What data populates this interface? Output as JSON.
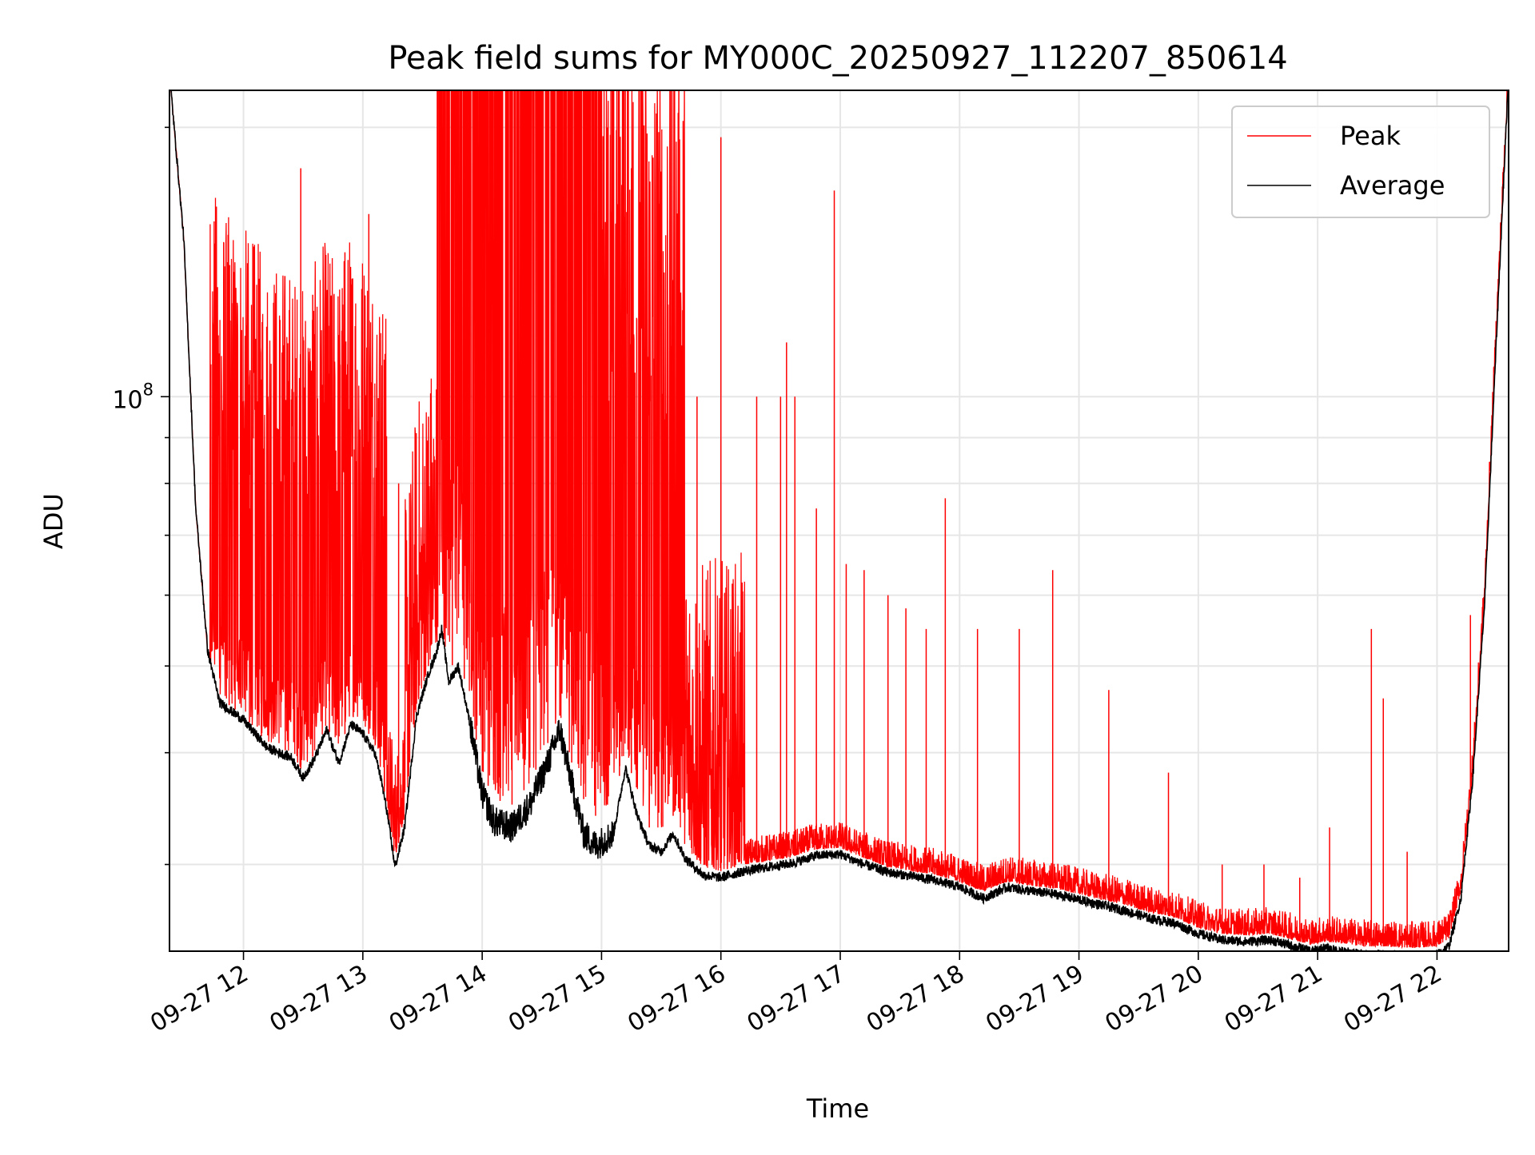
{
  "chart_data": {
    "type": "line",
    "title": "Peak field sums for MY000C_20250927_112207_850614",
    "xlabel": "Time",
    "ylabel": "ADU",
    "y_scale": "log",
    "ylim": [
      24000000,
      220000000
    ],
    "xlim_hours": [
      11.38,
      22.6
    ],
    "grid": true,
    "legend_position": "top-right",
    "x_ticks": [
      {
        "hour": 12,
        "label": "09-27 12"
      },
      {
        "hour": 13,
        "label": "09-27 13"
      },
      {
        "hour": 14,
        "label": "09-27 14"
      },
      {
        "hour": 15,
        "label": "09-27 15"
      },
      {
        "hour": 16,
        "label": "09-27 16"
      },
      {
        "hour": 17,
        "label": "09-27 17"
      },
      {
        "hour": 18,
        "label": "09-27 18"
      },
      {
        "hour": 19,
        "label": "09-27 19"
      },
      {
        "hour": 20,
        "label": "09-27 20"
      },
      {
        "hour": 21,
        "label": "09-27 21"
      },
      {
        "hour": 22,
        "label": "09-27 22"
      }
    ],
    "y_major_ticks": [
      {
        "value": 100000000,
        "label_base": "10",
        "label_exp": "8"
      }
    ],
    "y_minor_ticks": [
      30000000,
      40000000,
      50000000,
      60000000,
      70000000,
      80000000,
      90000000,
      200000000
    ],
    "series": [
      {
        "name": "Peak",
        "color": "#ff0000",
        "baseline": [
          [
            11.38,
            230000000
          ],
          [
            11.5,
            150000000
          ],
          [
            11.6,
            75000000
          ],
          [
            11.7,
            52000000
          ],
          [
            11.8,
            46000000
          ],
          [
            11.9,
            45000000
          ],
          [
            12.0,
            44000000
          ],
          [
            12.2,
            41000000
          ],
          [
            12.4,
            40000000
          ],
          [
            12.5,
            38000000
          ],
          [
            12.6,
            40000000
          ],
          [
            12.7,
            43000000
          ],
          [
            12.75,
            41000000
          ],
          [
            12.8,
            40000000
          ],
          [
            12.9,
            44000000
          ],
          [
            13.0,
            43000000
          ],
          [
            13.1,
            41000000
          ],
          [
            13.15,
            38000000
          ],
          [
            13.2,
            35000000
          ],
          [
            13.27,
            30500000
          ],
          [
            13.35,
            34000000
          ],
          [
            13.45,
            45000000
          ],
          [
            13.55,
            50000000
          ],
          [
            13.62,
            53000000
          ],
          [
            13.66,
            56000000
          ],
          [
            13.72,
            49000000
          ],
          [
            13.8,
            52000000
          ],
          [
            13.9,
            45000000
          ],
          [
            14.0,
            38000000
          ],
          [
            14.1,
            35500000
          ],
          [
            14.25,
            35000000
          ],
          [
            14.4,
            37000000
          ],
          [
            14.55,
            41000000
          ],
          [
            14.65,
            44000000
          ],
          [
            14.75,
            39000000
          ],
          [
            14.85,
            35500000
          ],
          [
            14.95,
            34000000
          ],
          [
            15.1,
            35500000
          ],
          [
            15.2,
            40000000
          ],
          [
            15.3,
            36000000
          ],
          [
            15.4,
            33000000
          ],
          [
            15.5,
            32500000
          ],
          [
            15.6,
            34000000
          ],
          [
            15.7,
            31500000
          ],
          [
            15.85,
            29800000
          ],
          [
            16.0,
            29500000
          ],
          [
            16.2,
            30000000
          ],
          [
            16.4,
            30300000
          ],
          [
            16.6,
            30600000
          ],
          [
            16.8,
            31200000
          ],
          [
            17.0,
            31300000
          ],
          [
            17.2,
            30500000
          ],
          [
            17.4,
            29800000
          ],
          [
            17.6,
            29500000
          ],
          [
            17.8,
            29200000
          ],
          [
            18.0,
            28700000
          ],
          [
            18.2,
            28000000
          ],
          [
            18.4,
            28700000
          ],
          [
            18.6,
            28400000
          ],
          [
            18.8,
            28200000
          ],
          [
            19.0,
            27800000
          ],
          [
            19.2,
            27400000
          ],
          [
            19.4,
            27000000
          ],
          [
            19.6,
            26500000
          ],
          [
            19.8,
            26200000
          ],
          [
            20.0,
            25500000
          ],
          [
            20.2,
            25100000
          ],
          [
            20.4,
            25000000
          ],
          [
            20.6,
            25100000
          ],
          [
            20.8,
            24700000
          ],
          [
            20.95,
            24400000
          ],
          [
            21.05,
            24600000
          ],
          [
            21.2,
            24500000
          ],
          [
            21.4,
            24300000
          ],
          [
            21.6,
            24300000
          ],
          [
            21.8,
            24200000
          ],
          [
            22.0,
            24300000
          ],
          [
            22.1,
            24800000
          ],
          [
            22.2,
            28000000
          ],
          [
            22.3,
            38000000
          ],
          [
            22.4,
            60000000
          ],
          [
            22.5,
            120000000
          ],
          [
            22.6,
            230000000
          ]
        ],
        "spikes": [
          [
            11.72,
            75000000
          ],
          [
            11.88,
            68000000
          ],
          [
            11.93,
            90000000
          ],
          [
            12.05,
            75000000
          ],
          [
            12.15,
            65000000
          ],
          [
            12.35,
            90000000
          ],
          [
            12.48,
            180000000
          ],
          [
            12.58,
            130000000
          ],
          [
            12.72,
            120000000
          ],
          [
            12.85,
            145000000
          ],
          [
            13.05,
            160000000
          ],
          [
            13.18,
            110000000
          ],
          [
            13.3,
            80000000
          ],
          [
            13.55,
            95000000
          ],
          [
            13.68,
            220000000
          ],
          [
            13.75,
            220000000
          ],
          [
            13.85,
            220000000
          ],
          [
            13.95,
            220000000
          ],
          [
            14.05,
            220000000
          ],
          [
            14.15,
            220000000
          ],
          [
            14.25,
            220000000
          ],
          [
            14.35,
            220000000
          ],
          [
            14.45,
            220000000
          ],
          [
            14.55,
            220000000
          ],
          [
            14.65,
            220000000
          ],
          [
            14.75,
            220000000
          ],
          [
            14.85,
            220000000
          ],
          [
            14.95,
            220000000
          ],
          [
            15.05,
            200000000
          ],
          [
            15.15,
            190000000
          ],
          [
            15.25,
            180000000
          ],
          [
            15.4,
            140000000
          ],
          [
            15.6,
            135000000
          ],
          [
            15.8,
            100000000
          ],
          [
            16.0,
            195000000
          ],
          [
            16.3,
            100000000
          ],
          [
            16.5,
            100000000
          ],
          [
            16.55,
            115000000
          ],
          [
            16.62,
            100000000
          ],
          [
            16.8,
            75000000
          ],
          [
            16.95,
            170000000
          ],
          [
            17.05,
            65000000
          ],
          [
            17.2,
            64000000
          ],
          [
            17.4,
            60000000
          ],
          [
            17.55,
            58000000
          ],
          [
            17.72,
            55000000
          ],
          [
            17.88,
            77000000
          ],
          [
            18.15,
            55000000
          ],
          [
            18.5,
            55000000
          ],
          [
            18.78,
            64000000
          ],
          [
            19.25,
            47000000
          ],
          [
            19.75,
            38000000
          ],
          [
            20.2,
            30000000
          ],
          [
            20.55,
            30000000
          ],
          [
            20.85,
            29000000
          ],
          [
            21.1,
            33000000
          ],
          [
            21.45,
            55000000
          ],
          [
            21.55,
            46000000
          ],
          [
            21.75,
            31000000
          ],
          [
            22.28,
            57000000
          ]
        ]
      },
      {
        "name": "Average",
        "color": "#000000",
        "baseline": [
          [
            11.38,
            230000000
          ],
          [
            11.5,
            150000000
          ],
          [
            11.6,
            75000000
          ],
          [
            11.7,
            52000000
          ],
          [
            11.8,
            45500000
          ],
          [
            11.9,
            44500000
          ],
          [
            12.0,
            43500000
          ],
          [
            12.2,
            40500000
          ],
          [
            12.4,
            39500000
          ],
          [
            12.5,
            37500000
          ],
          [
            12.6,
            39500000
          ],
          [
            12.7,
            42500000
          ],
          [
            12.75,
            40500000
          ],
          [
            12.8,
            39000000
          ],
          [
            12.9,
            43000000
          ],
          [
            13.0,
            42000000
          ],
          [
            13.1,
            40000000
          ],
          [
            13.15,
            37500000
          ],
          [
            13.2,
            34500000
          ],
          [
            13.27,
            29800000
          ],
          [
            13.35,
            33000000
          ],
          [
            13.45,
            44000000
          ],
          [
            13.55,
            49000000
          ],
          [
            13.62,
            52000000
          ],
          [
            13.66,
            55000000
          ],
          [
            13.72,
            48000000
          ],
          [
            13.8,
            50000000
          ],
          [
            13.9,
            43000000
          ],
          [
            14.0,
            36000000
          ],
          [
            14.1,
            33500000
          ],
          [
            14.25,
            33000000
          ],
          [
            14.4,
            35000000
          ],
          [
            14.55,
            39000000
          ],
          [
            14.65,
            42500000
          ],
          [
            14.75,
            37000000
          ],
          [
            14.85,
            32500000
          ],
          [
            14.95,
            31500000
          ],
          [
            15.1,
            32500000
          ],
          [
            15.2,
            38500000
          ],
          [
            15.3,
            34000000
          ],
          [
            15.4,
            31500000
          ],
          [
            15.5,
            31000000
          ],
          [
            15.6,
            32500000
          ],
          [
            15.7,
            30500000
          ],
          [
            15.85,
            29200000
          ],
          [
            16.0,
            29000000
          ],
          [
            16.2,
            29500000
          ],
          [
            16.4,
            29800000
          ],
          [
            16.6,
            30100000
          ],
          [
            16.8,
            30700000
          ],
          [
            17.0,
            30800000
          ],
          [
            17.2,
            30000000
          ],
          [
            17.4,
            29400000
          ],
          [
            17.6,
            29100000
          ],
          [
            17.8,
            28800000
          ],
          [
            18.0,
            28300000
          ],
          [
            18.2,
            27500000
          ],
          [
            18.4,
            28300000
          ],
          [
            18.6,
            28000000
          ],
          [
            18.8,
            27800000
          ],
          [
            19.0,
            27400000
          ],
          [
            19.2,
            27000000
          ],
          [
            19.4,
            26600000
          ],
          [
            19.6,
            26100000
          ],
          [
            19.8,
            25800000
          ],
          [
            20.0,
            25100000
          ],
          [
            20.2,
            24700000
          ],
          [
            20.4,
            24600000
          ],
          [
            20.6,
            24700000
          ],
          [
            20.8,
            24300000
          ],
          [
            20.95,
            24000000
          ],
          [
            21.05,
            24200000
          ],
          [
            21.2,
            24000000
          ],
          [
            21.4,
            23800000
          ],
          [
            21.6,
            23800000
          ],
          [
            21.8,
            23700000
          ],
          [
            22.0,
            23800000
          ],
          [
            22.1,
            24300000
          ],
          [
            22.2,
            27500000
          ],
          [
            22.3,
            37500000
          ],
          [
            22.4,
            59000000
          ],
          [
            22.5,
            118000000
          ],
          [
            22.6,
            230000000
          ]
        ]
      }
    ]
  }
}
